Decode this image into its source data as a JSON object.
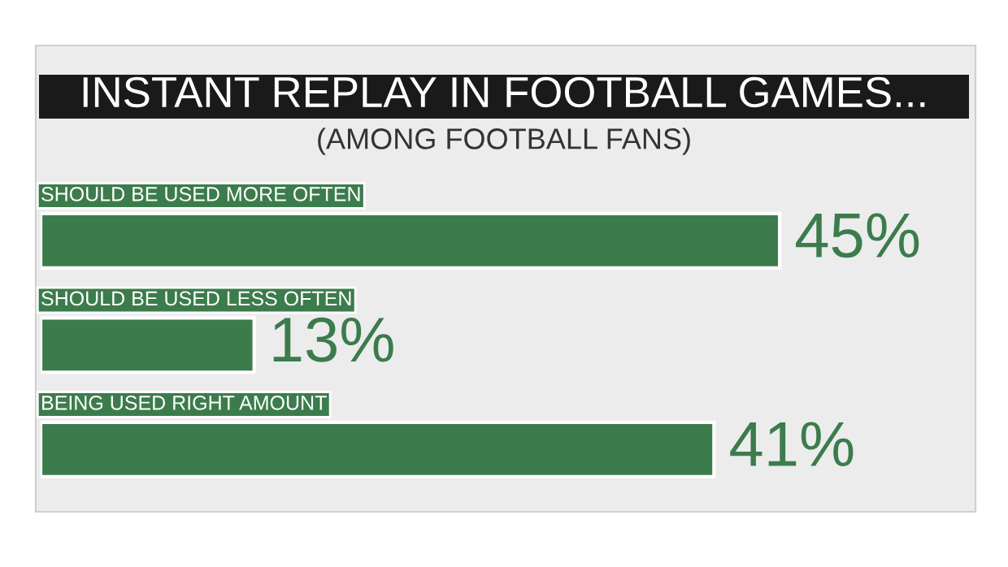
{
  "chart_data": {
    "type": "bar",
    "orientation": "horizontal",
    "title": "INSTANT REPLAY IN FOOTBALL GAMES...",
    "subtitle": "(AMONG FOOTBALL FANS)",
    "categories": [
      "SHOULD BE USED MORE OFTEN",
      "SHOULD BE USED LESS OFTEN",
      "BEING USED RIGHT AMOUNT"
    ],
    "values": [
      45,
      13,
      41
    ],
    "color": "#3c7c4c",
    "value_labels": [
      "45%",
      "13%",
      "41%"
    ]
  }
}
